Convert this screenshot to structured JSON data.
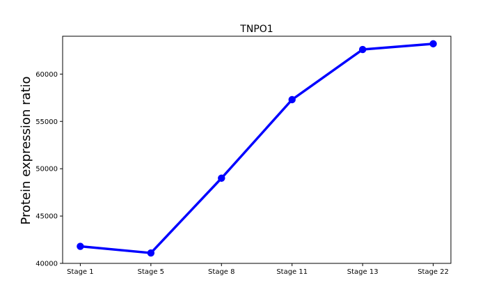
{
  "chart_data": {
    "type": "line",
    "title": "TNPO1",
    "xlabel": "",
    "ylabel": "Protein expression ratio",
    "categories": [
      "Stage 1",
      "Stage 5",
      "Stage 8",
      "Stage 11",
      "Stage 13",
      "Stage 22"
    ],
    "series": [
      {
        "values": [
          41800,
          41100,
          49000,
          57300,
          62600,
          63200
        ],
        "color": "#0000ff"
      }
    ],
    "ylim": [
      40000,
      64000
    ],
    "yticks": [
      40000,
      45000,
      50000,
      55000,
      60000
    ],
    "grid": false,
    "legend": "none"
  }
}
